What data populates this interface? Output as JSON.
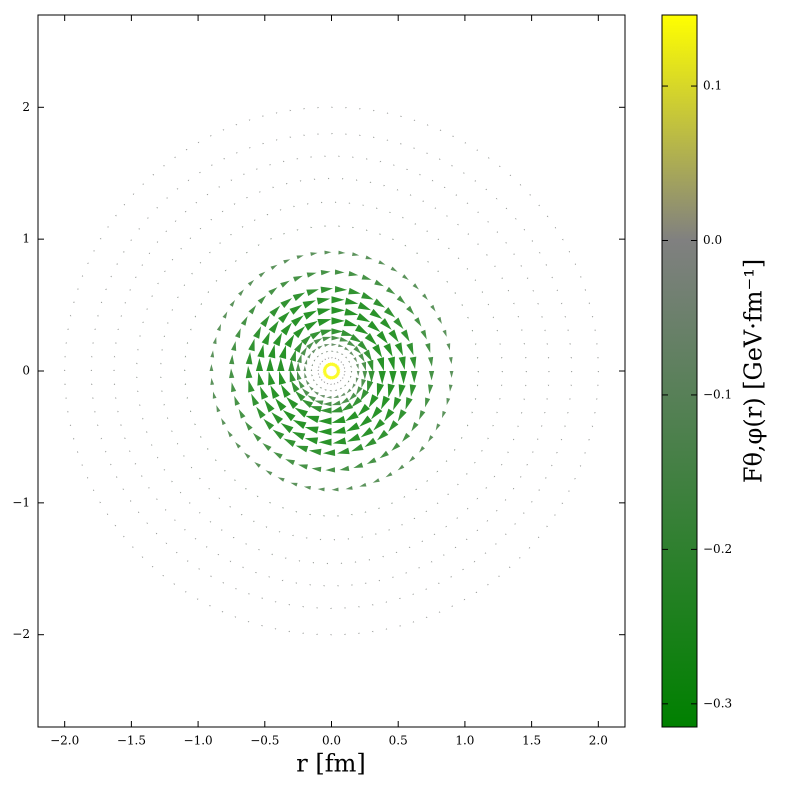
{
  "chart_data": {
    "type": "quiver",
    "x_label": "r [fm]",
    "colorbar_label": "Fθ,φ(r) [GeV·fm⁻¹]",
    "x": [
      0.05,
      0.1,
      0.15,
      0.2,
      0.25,
      0.3,
      0.38,
      0.46,
      0.54,
      0.62,
      0.75,
      0.9,
      1.1,
      1.28,
      1.46,
      1.63,
      1.8,
      2.0
    ],
    "values": [
      0.14,
      0.0,
      -0.05,
      -0.12,
      -0.2,
      -0.27,
      -0.31,
      -0.31,
      -0.3,
      -0.28,
      -0.22,
      -0.16,
      -0.04,
      -0.02,
      -0.015,
      -0.01,
      -0.008,
      -0.006
    ],
    "xlim": [
      -2.2,
      2.2
    ],
    "ylim": [
      -2.7,
      2.7
    ],
    "xticks": [
      {
        "value": -2.0,
        "label": "−2.0"
      },
      {
        "value": -1.5,
        "label": "−1.5"
      },
      {
        "value": -1.0,
        "label": "−1.0"
      },
      {
        "value": -0.5,
        "label": "−0.5"
      },
      {
        "value": 0.0,
        "label": "0.0"
      },
      {
        "value": 0.5,
        "label": "0.5"
      },
      {
        "value": 1.0,
        "label": "1.0"
      },
      {
        "value": 1.5,
        "label": "1.5"
      },
      {
        "value": 2.0,
        "label": "2.0"
      }
    ],
    "yticks": [
      {
        "value": -2,
        "label": "−2"
      },
      {
        "value": -1,
        "label": "−1"
      },
      0,
      1,
      2
    ],
    "clim": [
      -0.315,
      0.146
    ],
    "cticks": [
      {
        "value": -0.3,
        "label": "−0.3"
      },
      {
        "value": -0.2,
        "label": "−0.2"
      },
      {
        "value": -0.1,
        "label": "−0.1"
      },
      {
        "value": 0.0,
        "label": "0.0"
      },
      {
        "value": 0.1,
        "label": "0.1"
      }
    ],
    "colormap": [
      "#008000",
      "#808080",
      "#ffff00"
    ],
    "colormap_center": 0
  }
}
